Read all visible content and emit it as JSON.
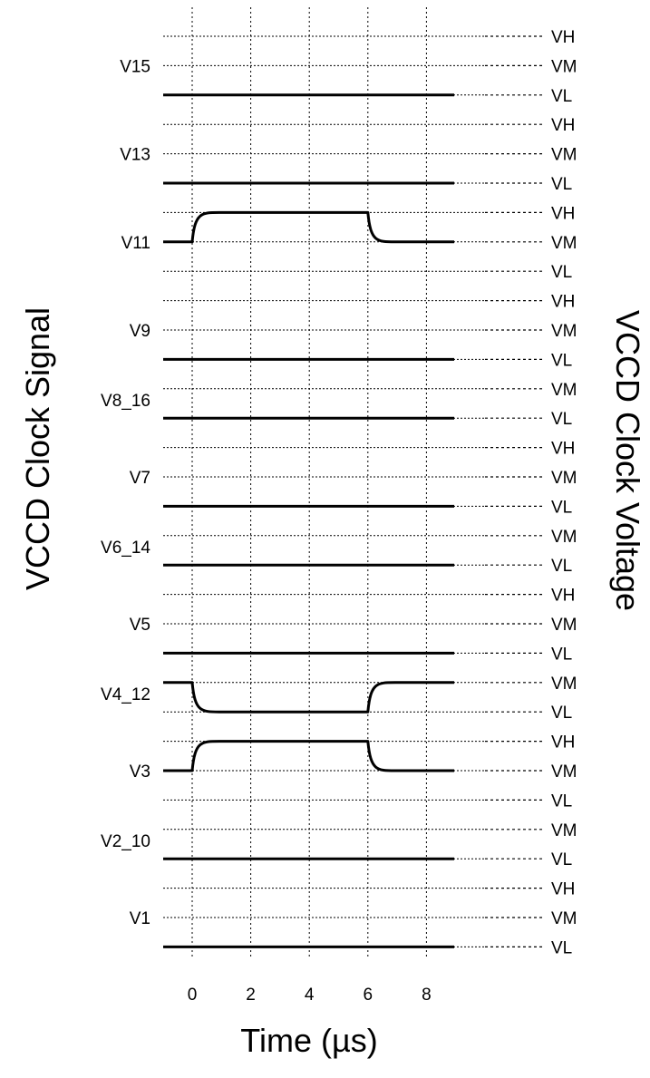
{
  "chart_data": {
    "type": "line",
    "subtype": "timing-diagram",
    "xlabel": "Time (µs)",
    "ylabel_left": "VCCD Clock Signal",
    "ylabel_right": "VCCD Clock Voltage",
    "xlim": [
      -1,
      9
    ],
    "xticks": [
      0,
      2,
      4,
      6,
      8
    ],
    "grid": true,
    "signals": [
      {
        "name": "V15",
        "levels": [
          "VH",
          "VM",
          "VL"
        ],
        "points": [
          [
            -1,
            "VL"
          ],
          [
            9,
            "VL"
          ]
        ]
      },
      {
        "name": "V13",
        "levels": [
          "VH",
          "VM",
          "VL"
        ],
        "points": [
          [
            -1,
            "VL"
          ],
          [
            9,
            "VL"
          ]
        ]
      },
      {
        "name": "V11",
        "levels": [
          "VH",
          "VM",
          "VL"
        ],
        "points": [
          [
            -1,
            "VM"
          ],
          [
            0,
            "VM"
          ],
          [
            1,
            "VH"
          ],
          [
            6,
            "VH"
          ],
          [
            7,
            "VM"
          ],
          [
            9,
            "VM"
          ]
        ],
        "transitions": [
          [
            0,
            "VM",
            "VH"
          ],
          [
            6,
            "VH",
            "VM"
          ]
        ]
      },
      {
        "name": "V9",
        "levels": [
          "VH",
          "VM",
          "VL"
        ],
        "points": [
          [
            -1,
            "VL"
          ],
          [
            9,
            "VL"
          ]
        ]
      },
      {
        "name": "V8_16",
        "levels": [
          "VM",
          "VL"
        ],
        "points": [
          [
            -1,
            "VL"
          ],
          [
            9,
            "VL"
          ]
        ]
      },
      {
        "name": "V7",
        "levels": [
          "VH",
          "VM",
          "VL"
        ],
        "points": [
          [
            -1,
            "VL"
          ],
          [
            9,
            "VL"
          ]
        ]
      },
      {
        "name": "V6_14",
        "levels": [
          "VM",
          "VL"
        ],
        "points": [
          [
            -1,
            "VL"
          ],
          [
            9,
            "VL"
          ]
        ]
      },
      {
        "name": "V5",
        "levels": [
          "VH",
          "VM",
          "VL"
        ],
        "points": [
          [
            -1,
            "VL"
          ],
          [
            9,
            "VL"
          ]
        ]
      },
      {
        "name": "V4_12",
        "levels": [
          "VM",
          "VL"
        ],
        "points": [
          [
            -1,
            "VM"
          ],
          [
            0,
            "VM"
          ],
          [
            1,
            "VL"
          ],
          [
            6,
            "VL"
          ],
          [
            7,
            "VM"
          ],
          [
            9,
            "VM"
          ]
        ],
        "transitions": [
          [
            0,
            "VM",
            "VL"
          ],
          [
            6,
            "VL",
            "VM"
          ]
        ]
      },
      {
        "name": "V3",
        "levels": [
          "VH",
          "VM",
          "VL"
        ],
        "points": [
          [
            -1,
            "VM"
          ],
          [
            0,
            "VM"
          ],
          [
            1,
            "VH"
          ],
          [
            6,
            "VH"
          ],
          [
            7,
            "VM"
          ],
          [
            9,
            "VM"
          ]
        ],
        "transitions": [
          [
            0,
            "VM",
            "VH"
          ],
          [
            6,
            "VH",
            "VM"
          ]
        ]
      },
      {
        "name": "V2_10",
        "levels": [
          "VM",
          "VL"
        ],
        "points": [
          [
            -1,
            "VL"
          ],
          [
            9,
            "VL"
          ]
        ]
      },
      {
        "name": "V1",
        "levels": [
          "VH",
          "VM",
          "VL"
        ],
        "points": [
          [
            -1,
            "VL"
          ],
          [
            9,
            "VL"
          ]
        ]
      }
    ]
  }
}
